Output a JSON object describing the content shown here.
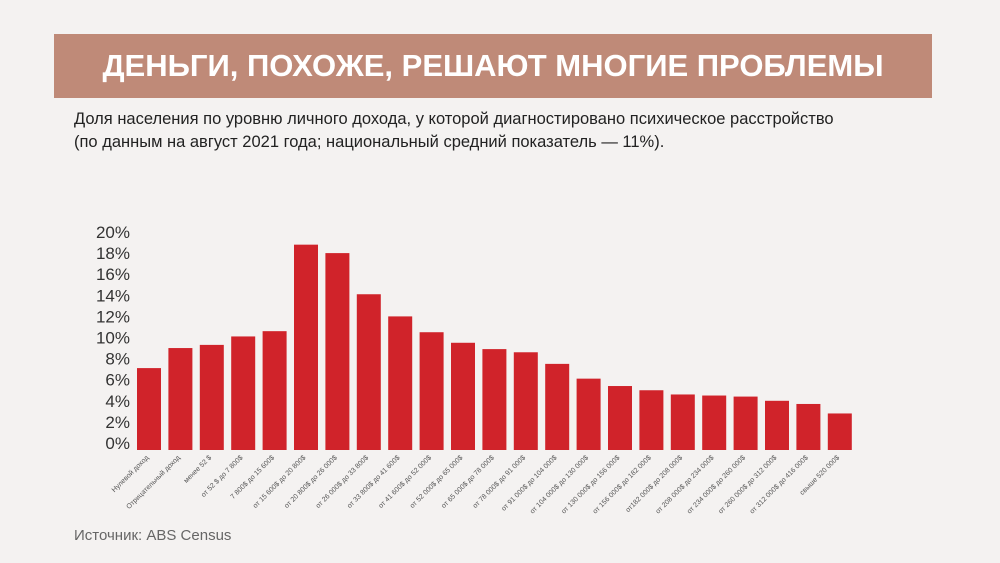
{
  "header": {
    "title": "ДЕНЬГИ, ПОХОЖЕ, РЕШАЮТ МНОГИЕ ПРОБЛЕМЫ",
    "subtitle_line1": "Доля населения по уровню личного дохода, у которой диагностировано психическое расстройство",
    "subtitle_line2": "(по данным на август 2021 года; национальный средний показатель — 11%)."
  },
  "footer": {
    "source": "Источник: ABS Census"
  },
  "colors": {
    "bar": "#d0232a",
    "banner": "#bf8a78"
  },
  "chart_data": {
    "type": "bar",
    "ylim": [
      0,
      20
    ],
    "yticks": [
      "0%",
      "2%",
      "4%",
      "6%",
      "8%",
      "10%",
      "12%",
      "14%",
      "16%",
      "18%",
      "20%"
    ],
    "grid": false,
    "categories": [
      "Нулевой доход",
      "Отрицательный доход",
      "менее 52 $",
      "от 52 $ до 7 800$",
      "7 800$ до 15 600$",
      "от 15 600$ до 20 800$",
      "от 20 800$ до 26 000$",
      "от 26 000$ до 33 800$",
      "от 33 800$ до 41 600$",
      "от 41 600$ до 52 000$",
      "от 52 000$ до 65 000$",
      "от 65 000$ до 78 000$",
      "от 78 000$ до 91 000$",
      "от 91 000$ до 104 000$",
      "от 104 000$ до 130 000$",
      "от 130 000$ до 156 000$",
      "от 156 000$ до 182 000$",
      "от182 000$ до 208 000$",
      "от 208 000$ до 234 000$",
      "от 234 000$ до 260 000$",
      "от 260 000$ до 312 000$",
      "от 312 000$ до 416 000$",
      "свыше 520 000$"
    ],
    "values": [
      7.1,
      9.0,
      9.3,
      10.1,
      10.6,
      18.8,
      18.0,
      14.1,
      12.0,
      10.5,
      9.5,
      8.9,
      8.6,
      7.5,
      6.1,
      5.4,
      5.0,
      4.6,
      4.5,
      4.4,
      4.0,
      3.7,
      2.8
    ]
  }
}
